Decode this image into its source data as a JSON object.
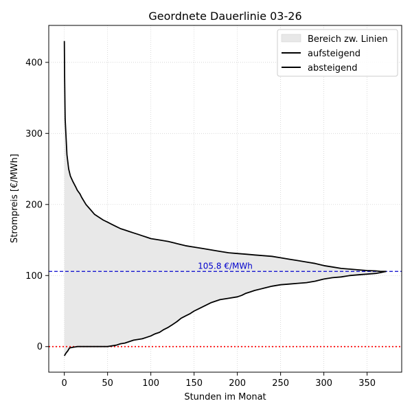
{
  "chart_data": {
    "type": "area",
    "title": "Geordnete Dauerlinie 03-26",
    "xlabel": "Stunden im Monat",
    "ylabel": "Strompreis [€/MWh]",
    "xlim": [
      -18,
      390
    ],
    "ylim": [
      -36,
      452
    ],
    "xticks": [
      0,
      50,
      100,
      150,
      200,
      250,
      300,
      350
    ],
    "yticks": [
      0,
      100,
      200,
      300,
      400
    ],
    "grid": true,
    "legend_position": "top-right",
    "legend": [
      "Bereich zw. Linien",
      "aufsteigend",
      "absteigend"
    ],
    "colors": {
      "fill": "#e8e8e8",
      "line": "#000000",
      "mean_line": "#0000cc",
      "zero_line": "#ff0000",
      "grid": "#d0d0d0"
    },
    "mean_value": 105.8,
    "mean_label": "105.8 €/MWh",
    "zero_value": 0,
    "series": [
      {
        "name": "aufsteigend",
        "x": [
          0,
          2,
          4,
          6,
          10,
          15,
          20,
          30,
          40,
          50,
          55,
          60,
          65,
          70,
          75,
          80,
          85,
          90,
          95,
          100,
          105,
          110,
          115,
          120,
          125,
          130,
          135,
          140,
          145,
          150,
          155,
          160,
          165,
          170,
          175,
          180,
          190,
          200,
          205,
          210,
          215,
          220,
          230,
          240,
          250,
          260,
          270,
          280,
          290,
          300,
          310,
          320,
          330,
          340,
          350,
          360,
          365,
          372
        ],
        "y": [
          -13,
          -9,
          -6,
          -2,
          -1,
          0,
          0,
          0,
          0,
          0,
          1,
          2,
          4,
          5,
          7,
          9,
          10,
          11,
          13,
          15,
          18,
          20,
          24,
          27,
          31,
          35,
          40,
          43,
          46,
          50,
          53,
          56,
          59,
          62,
          64,
          66,
          68,
          70,
          72,
          75,
          77,
          79,
          82,
          85,
          87,
          88,
          89,
          90,
          92,
          95,
          97,
          98,
          100,
          101,
          102,
          103,
          104,
          105.8
        ]
      },
      {
        "name": "absteigend",
        "x": [
          0,
          0.3,
          0.7,
          1,
          2,
          3,
          5,
          7,
          10,
          13,
          15,
          18,
          20,
          25,
          30,
          35,
          40,
          45,
          50,
          55,
          60,
          65,
          70,
          75,
          80,
          85,
          90,
          95,
          100,
          110,
          120,
          130,
          140,
          150,
          160,
          170,
          180,
          190,
          200,
          210,
          220,
          230,
          240,
          250,
          260,
          270,
          280,
          290,
          300,
          310,
          320,
          330,
          340,
          350,
          360,
          365,
          372
        ],
        "y": [
          430,
          380,
          340,
          320,
          295,
          270,
          250,
          240,
          232,
          225,
          220,
          215,
          210,
          200,
          193,
          186,
          182,
          178,
          175,
          172,
          169,
          166,
          164,
          162,
          160,
          158,
          156,
          154,
          152,
          150,
          148,
          145,
          142,
          140,
          138,
          136,
          134,
          132,
          131,
          130,
          129,
          128,
          127,
          125,
          123,
          121,
          119,
          117,
          114,
          112,
          110,
          109,
          108,
          107,
          106.5,
          106,
          105.8
        ]
      }
    ]
  }
}
